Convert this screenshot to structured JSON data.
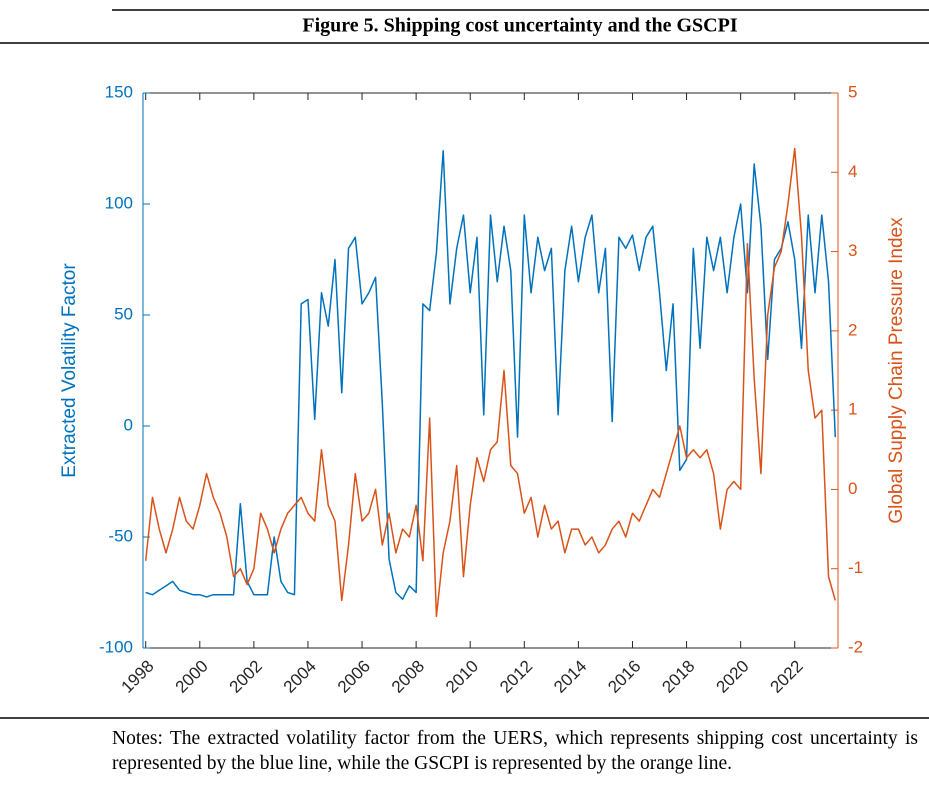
{
  "chart_data": {
    "type": "line",
    "title": "Figure 5. Shipping cost uncertainty and the GSCPI",
    "y_label": "Extracted Volatility Factor",
    "y2_label": "Global Supply Chain Pressure Index",
    "x": [
      1998,
      1998.25,
      1998.5,
      1998.75,
      1999,
      1999.25,
      1999.5,
      1999.75,
      2000,
      2000.25,
      2000.5,
      2000.75,
      2001,
      2001.25,
      2001.5,
      2001.75,
      2002,
      2002.25,
      2002.5,
      2002.75,
      2003,
      2003.25,
      2003.5,
      2003.75,
      2004,
      2004.25,
      2004.5,
      2004.75,
      2005,
      2005.25,
      2005.5,
      2005.75,
      2006,
      2006.25,
      2006.5,
      2006.75,
      2007,
      2007.25,
      2007.5,
      2007.75,
      2008,
      2008.25,
      2008.5,
      2008.75,
      2009,
      2009.25,
      2009.5,
      2009.75,
      2010,
      2010.25,
      2010.5,
      2010.75,
      2011,
      2011.25,
      2011.5,
      2011.75,
      2012,
      2012.25,
      2012.5,
      2012.75,
      2013,
      2013.25,
      2013.5,
      2013.75,
      2014,
      2014.25,
      2014.5,
      2014.75,
      2015,
      2015.25,
      2015.5,
      2015.75,
      2016,
      2016.25,
      2016.5,
      2016.75,
      2017,
      2017.25,
      2017.5,
      2017.75,
      2018,
      2018.25,
      2018.5,
      2018.75,
      2019,
      2019.25,
      2019.5,
      2019.75,
      2020,
      2020.25,
      2020.5,
      2020.75,
      2021,
      2021.25,
      2021.5,
      2021.75,
      2022,
      2022.25,
      2022.5,
      2022.75,
      2023,
      2023.25,
      2023.5
    ],
    "series": [
      {
        "name": "Extracted Volatility Factor",
        "color": "#0072BD",
        "axis": "y",
        "values": [
          -75,
          -76,
          -74,
          -72,
          -70,
          -74,
          -75,
          -76,
          -76,
          -77,
          -76,
          -76,
          -76,
          -76,
          -35,
          -70,
          -76,
          -76,
          -76,
          -50,
          -70,
          -75,
          -76,
          55,
          57,
          3,
          60,
          45,
          75,
          15,
          80,
          85,
          55,
          60,
          67,
          10,
          -60,
          -75,
          -78,
          -72,
          -75,
          55,
          52,
          78,
          124,
          55,
          80,
          95,
          60,
          85,
          5,
          95,
          65,
          90,
          70,
          -5,
          95,
          60,
          85,
          70,
          80,
          5,
          70,
          90,
          65,
          85,
          95,
          60,
          80,
          2,
          85,
          80,
          86,
          70,
          85,
          90,
          60,
          25,
          55,
          -20,
          -15,
          80,
          35,
          85,
          70,
          85,
          60,
          85,
          100,
          60,
          118,
          90,
          30,
          75,
          80,
          92,
          75,
          35,
          95,
          60,
          95,
          65,
          -5
        ]
      },
      {
        "name": "Global Supply Chain Pressure Index",
        "color": "#D95319",
        "axis": "y2",
        "values": [
          -0.9,
          -0.1,
          -0.5,
          -0.8,
          -0.5,
          -0.1,
          -0.4,
          -0.5,
          -0.2,
          0.2,
          -0.1,
          -0.3,
          -0.6,
          -1.1,
          -1.0,
          -1.2,
          -1.0,
          -0.3,
          -0.5,
          -0.8,
          -0.5,
          -0.3,
          -0.2,
          -0.1,
          -0.3,
          -0.4,
          0.5,
          -0.2,
          -0.4,
          -1.4,
          -0.7,
          0.2,
          -0.4,
          -0.3,
          0.0,
          -0.7,
          -0.3,
          -0.8,
          -0.5,
          -0.6,
          -0.2,
          -0.9,
          0.9,
          -1.6,
          -0.8,
          -0.4,
          0.3,
          -1.1,
          -0.2,
          0.4,
          0.1,
          0.5,
          0.6,
          1.5,
          0.3,
          0.2,
          -0.3,
          -0.1,
          -0.6,
          -0.2,
          -0.5,
          -0.4,
          -0.8,
          -0.5,
          -0.5,
          -0.7,
          -0.6,
          -0.8,
          -0.7,
          -0.5,
          -0.4,
          -0.6,
          -0.3,
          -0.4,
          -0.2,
          0.0,
          -0.1,
          0.2,
          0.5,
          0.8,
          0.4,
          0.5,
          0.4,
          0.5,
          0.2,
          -0.5,
          0.0,
          0.1,
          0.0,
          3.1,
          1.4,
          0.2,
          2.2,
          2.8,
          3.0,
          3.6,
          4.3,
          3.2,
          1.5,
          0.9,
          1.0,
          -1.1,
          -1.4
        ]
      }
    ],
    "xlim": [
      1997.9,
      2023.6
    ],
    "xticks": [
      1998,
      2000,
      2002,
      2004,
      2006,
      2008,
      2010,
      2012,
      2014,
      2016,
      2018,
      2020,
      2022
    ],
    "ylim": [
      -100,
      150
    ],
    "yticks": [
      -100,
      -50,
      0,
      50,
      100,
      150
    ],
    "y2lim": [
      -2,
      5
    ],
    "y2ticks": [
      -2,
      -1,
      0,
      1,
      2,
      3,
      4,
      5
    ]
  },
  "notes": "Notes: The extracted volatility factor from the UERS, which represents shipping cost uncertainty is represented by the blue line, while the GSCPI is represented by the orange line."
}
